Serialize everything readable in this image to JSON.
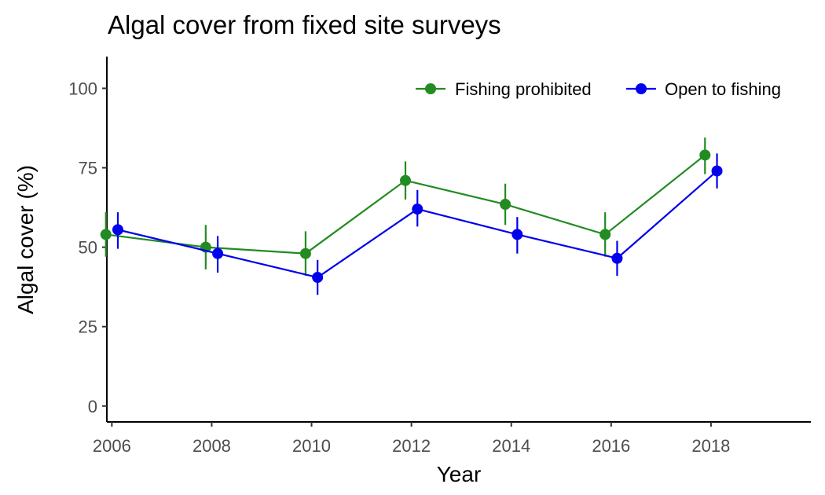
{
  "chart_data": {
    "type": "line",
    "title": "Algal cover from fixed site surveys",
    "xlabel": "Year",
    "ylabel": "Algal cover (%)",
    "x": [
      2006,
      2008,
      2010,
      2012,
      2014,
      2016,
      2018
    ],
    "x_tick_labels": [
      "2006",
      "2008",
      "2010",
      "2012",
      "2014",
      "2016",
      "2018"
    ],
    "xlim": [
      2005.9,
      2020.0
    ],
    "ylim": [
      -5,
      110
    ],
    "y_ticks": [
      0,
      25,
      50,
      75,
      100
    ],
    "y_tick_labels": [
      "0",
      "25",
      "50",
      "75",
      "100"
    ],
    "grid": false,
    "legend_position": "top-right",
    "series": [
      {
        "name": "Fishing prohibited",
        "color": "#228b22",
        "x_offset": -0.12,
        "values": [
          54,
          50,
          48,
          71,
          63.5,
          54,
          79
        ],
        "lower": [
          47,
          43,
          41,
          65,
          57,
          47,
          73
        ],
        "upper": [
          61,
          57,
          55,
          77,
          70,
          61,
          84.5
        ]
      },
      {
        "name": "Open to fishing",
        "color": "#0000ee",
        "x_offset": 0.12,
        "values": [
          55.5,
          48,
          40.5,
          62,
          54,
          46.5,
          74
        ],
        "lower": [
          49.5,
          42,
          35,
          56.5,
          48,
          41,
          68.5
        ],
        "upper": [
          61,
          53.5,
          46,
          68,
          59.5,
          52,
          79.5
        ]
      }
    ]
  }
}
